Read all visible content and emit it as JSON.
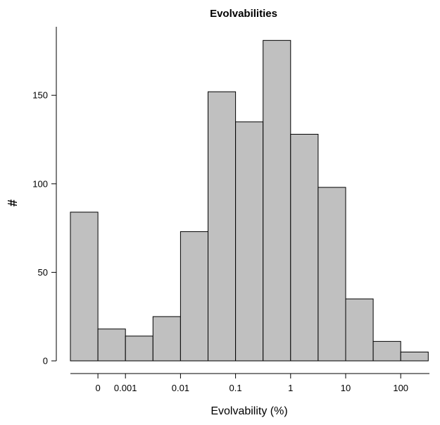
{
  "chart_data": {
    "type": "bar",
    "title": "Evolvabilities",
    "xlabel": "Evolvability (%)",
    "ylabel": "#",
    "ylim": [
      0,
      185
    ],
    "yticks": [
      0,
      50,
      100,
      150
    ],
    "xtick_labels": [
      "0",
      "0.001",
      "0.01",
      "0.1",
      "1",
      "10",
      "100"
    ],
    "grid": false,
    "values": [
      84,
      18,
      14,
      25,
      73,
      152,
      135,
      181,
      128,
      98,
      35,
      11,
      5
    ]
  }
}
